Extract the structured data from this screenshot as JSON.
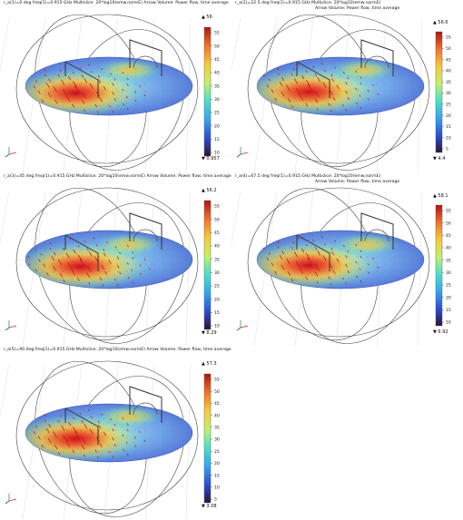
{
  "colors": {
    "colormap": [
      "#30123b",
      "#2b4fd8",
      "#33a7f0",
      "#4be0c8",
      "#c5f06a",
      "#f9c83a",
      "#f0722a",
      "#b3140e"
    ],
    "arrow": "#c81818",
    "outline": "#444444",
    "grid": "#dddddd"
  },
  "panels": [
    {
      "title_line1": "r_a(1)=0 deg freq(1)=0.915 GHz Multislice: 20*log10(emw.normE)  Arrow Volume: Power flow, time average",
      "title_line2": "",
      "cb_max": "▲ 56",
      "cb_min": "▼ 0.957",
      "ticks": [
        "55",
        "50",
        "45",
        "40",
        "35",
        "30",
        "25",
        "20",
        "15",
        "10"
      ]
    },
    {
      "title_line1": "r_a(2)=22.5 deg freq(1)=0.915 GHz  Multislice: 20*log10(emw.normE)",
      "title_line2": "Arrow Volume: Power flow, time average",
      "cb_max": "▲ 56.6",
      "cb_min": "▼ 4.4",
      "ticks": [
        "55",
        "50",
        "45",
        "40",
        "35",
        "30",
        "25",
        "20",
        "15",
        "10",
        "5"
      ]
    },
    {
      "title_line1": "r_a(3)=45 deg freq(1)=0.915 GHz  Multislice: 20*log10(emw.normE)  Arrow Volume: Power flow, time average",
      "title_line2": "",
      "cb_max": "▲ 56.2",
      "cb_min": "▼ 8.29",
      "ticks": [
        "55",
        "50",
        "45",
        "40",
        "35",
        "30",
        "25",
        "20",
        "15",
        "10"
      ]
    },
    {
      "title_line1": "r_a(4)=67.5 deg freq(1)=0.915 GHz  Multislice: 20*log10(emw.normE)",
      "title_line2": "Arrow Volume: Power flow, time average",
      "cb_max": "▲ 58.1",
      "cb_min": "▼ 6.92",
      "ticks": [
        "55",
        "50",
        "45",
        "40",
        "35",
        "30",
        "25",
        "20",
        "15",
        "10"
      ]
    },
    {
      "title_line1": "r_a(5)=90 deg freq(1)=0.915 GHz  Multislice: 20*log10(emw.normE)  Arrow Volume: Power flow, time average",
      "title_line2": "",
      "cb_max": "▲ 57.3",
      "cb_min": "▼ 3.08",
      "ticks": [
        "55",
        "50",
        "45",
        "40",
        "35",
        "30",
        "25",
        "20",
        "15",
        "10",
        "5"
      ]
    }
  ],
  "chart_data": [
    {
      "type": "heatmap",
      "title": "r_a(1)=0 deg freq(1)=0.915 GHz Multislice: 20*log10(emw.normE)  Arrow Volume: Power flow, time average",
      "colorbar": {
        "min": 0.957,
        "max": 56,
        "ticks": [
          10,
          15,
          20,
          25,
          30,
          35,
          40,
          45,
          50,
          55
        ]
      }
    },
    {
      "type": "heatmap",
      "title": "r_a(2)=22.5 deg freq(1)=0.915 GHz  Multislice: 20*log10(emw.normE)  Arrow Volume: Power flow, time average",
      "colorbar": {
        "min": 4.4,
        "max": 56.6,
        "ticks": [
          5,
          10,
          15,
          20,
          25,
          30,
          35,
          40,
          45,
          50,
          55
        ]
      }
    },
    {
      "type": "heatmap",
      "title": "r_a(3)=45 deg freq(1)=0.915 GHz  Multislice: 20*log10(emw.normE)  Arrow Volume: Power flow, time average",
      "colorbar": {
        "min": 8.29,
        "max": 56.2,
        "ticks": [
          10,
          15,
          20,
          25,
          30,
          35,
          40,
          45,
          50,
          55
        ]
      }
    },
    {
      "type": "heatmap",
      "title": "r_a(4)=67.5 deg freq(1)=0.915 GHz  Multislice: 20*log10(emw.normE)  Arrow Volume: Power flow, time average",
      "colorbar": {
        "min": 6.92,
        "max": 58.1,
        "ticks": [
          10,
          15,
          20,
          25,
          30,
          35,
          40,
          45,
          50,
          55
        ]
      }
    },
    {
      "type": "heatmap",
      "title": "r_a(5)=90 deg freq(1)=0.915 GHz  Multislice: 20*log10(emw.normE)  Arrow Volume: Power flow, time average",
      "colorbar": {
        "min": 3.08,
        "max": 57.3,
        "ticks": [
          5,
          10,
          15,
          20,
          25,
          30,
          35,
          40,
          45,
          50,
          55
        ]
      }
    }
  ]
}
